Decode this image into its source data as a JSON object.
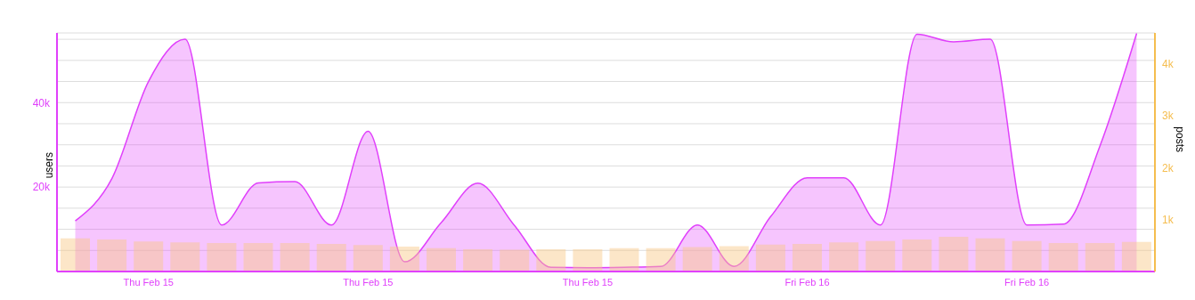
{
  "chart_data": {
    "type": "bar",
    "ylabel": "users",
    "y2label": "posts",
    "categories": [
      null,
      null,
      "Thu Feb 15",
      null,
      null,
      null,
      null,
      null,
      "Thu Feb 15",
      null,
      null,
      null,
      null,
      null,
      "Thu Feb 15",
      null,
      null,
      null,
      null,
      null,
      "Fri Feb 16",
      null,
      null,
      null,
      null,
      null,
      "Fri Feb 16",
      null,
      null,
      null
    ],
    "series": [
      {
        "axis": "y2",
        "color": "#f9c784",
        "values": [
          640,
          620,
          580,
          560,
          550,
          550,
          550,
          530,
          510,
          480,
          450,
          430,
          420,
          430,
          430,
          450,
          450,
          470,
          490,
          520,
          530,
          560,
          590,
          620,
          670,
          640,
          590,
          550,
          550,
          570
        ]
      },
      {
        "type": "area",
        "color": "#e040fb",
        "values": [
          12000,
          22000,
          45000,
          55000,
          11000,
          21000,
          21300,
          11000,
          33200,
          2300,
          11600,
          20900,
          10900,
          1000,
          900,
          1000,
          1200,
          11000,
          1200,
          13000,
          22200,
          22200,
          11000,
          56200,
          54400,
          55000,
          11000,
          11200,
          29800,
          56400
        ]
      }
    ],
    "ylim": [
      0,
      56500
    ],
    "yticks": [
      {
        "value": 5000,
        "label": null
      },
      {
        "value": 10000,
        "label": null
      },
      {
        "value": 15000,
        "label": null
      },
      {
        "value": 20000,
        "label": "20k"
      },
      {
        "value": 25000,
        "label": null
      },
      {
        "value": 30000,
        "label": null
      },
      {
        "value": 35000,
        "label": null
      },
      {
        "value": 40000,
        "label": "40k"
      },
      {
        "value": 45000,
        "label": null
      },
      {
        "value": 50000,
        "label": null
      },
      {
        "value": 55000,
        "label": null
      }
    ],
    "y2lim": [
      0,
      4600
    ],
    "y2ticks": [
      {
        "value": 1000,
        "label": "1k"
      },
      {
        "value": 2000,
        "label": "2k"
      },
      {
        "value": 3000,
        "label": "3k"
      },
      {
        "value": 4000,
        "label": "4k"
      }
    ],
    "grid": "y",
    "marker": "none"
  }
}
